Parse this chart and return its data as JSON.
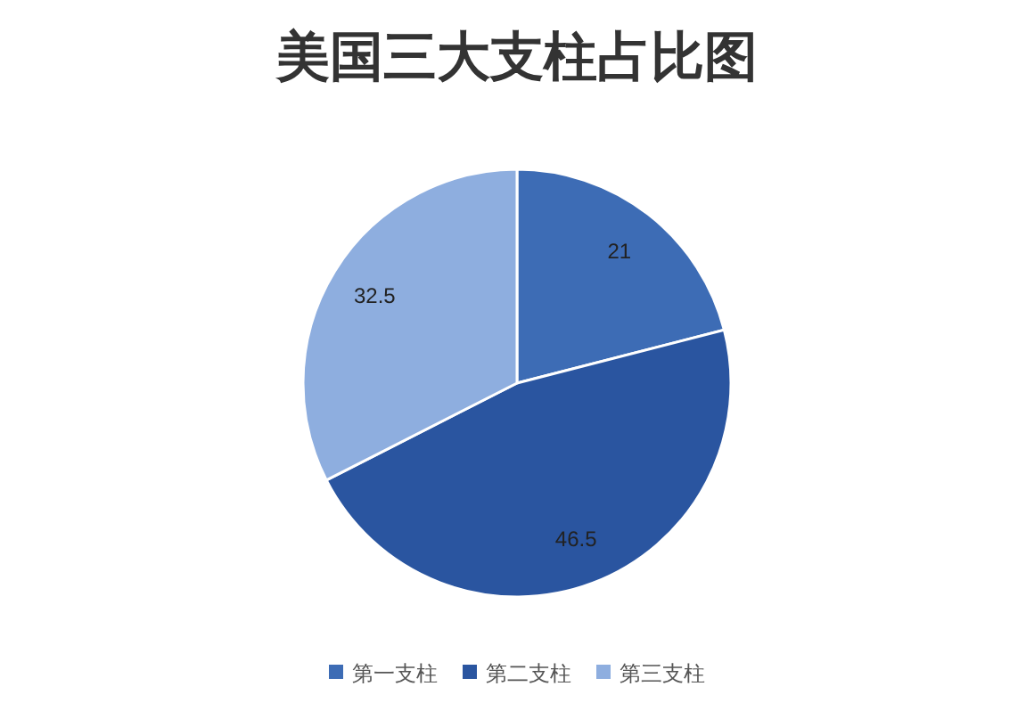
{
  "chart_data": {
    "type": "pie",
    "title": "美国三大支柱占比图",
    "categories": [
      "第一支柱",
      "第二支柱",
      "第三支柱"
    ],
    "values": [
      21,
      46.5,
      32.5
    ],
    "colors": [
      "#3d6cb5",
      "#2a55a0",
      "#8eaedf"
    ],
    "data_labels": true,
    "legend": "bottom"
  }
}
